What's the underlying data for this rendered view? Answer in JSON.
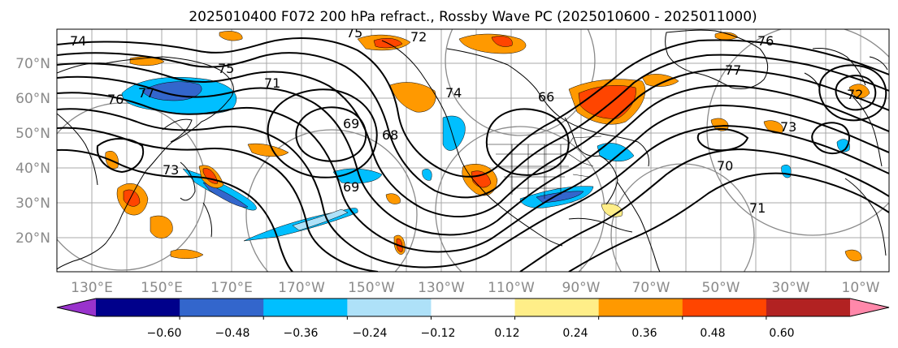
{
  "title": "2025010400 F072 200 hPa refract., Rossby Wave PC (2025010600 - 2025011000)",
  "map": {
    "lat_labels": [
      "70°N",
      "60°N",
      "50°N",
      "40°N",
      "30°N",
      "20°N"
    ],
    "lon_labels": [
      "130°E",
      "150°E",
      "170°E",
      "170°W",
      "150°W",
      "130°W",
      "110°W",
      "90°W",
      "70°W",
      "50°W",
      "30°W",
      "10°W"
    ],
    "contour_labels": [
      "74",
      "76",
      "77",
      "75",
      "72",
      "76",
      "77",
      "72",
      "68",
      "73",
      "69",
      "66",
      "69",
      "71",
      "74",
      "73",
      "70",
      "71",
      "75"
    ]
  },
  "colorbar": {
    "tick_labels": [
      "−0.60",
      "−0.48",
      "−0.36",
      "−0.24",
      "−0.12",
      "0.12",
      "0.24",
      "0.36",
      "0.48",
      "0.60"
    ],
    "colors": [
      "#9933cc",
      "#00008b",
      "#3366cc",
      "#00bfff",
      "#aee1f8",
      "#ffffff",
      "#ffee88",
      "#ff9900",
      "#ff4500",
      "#b22222",
      "#ff88aa"
    ]
  }
}
